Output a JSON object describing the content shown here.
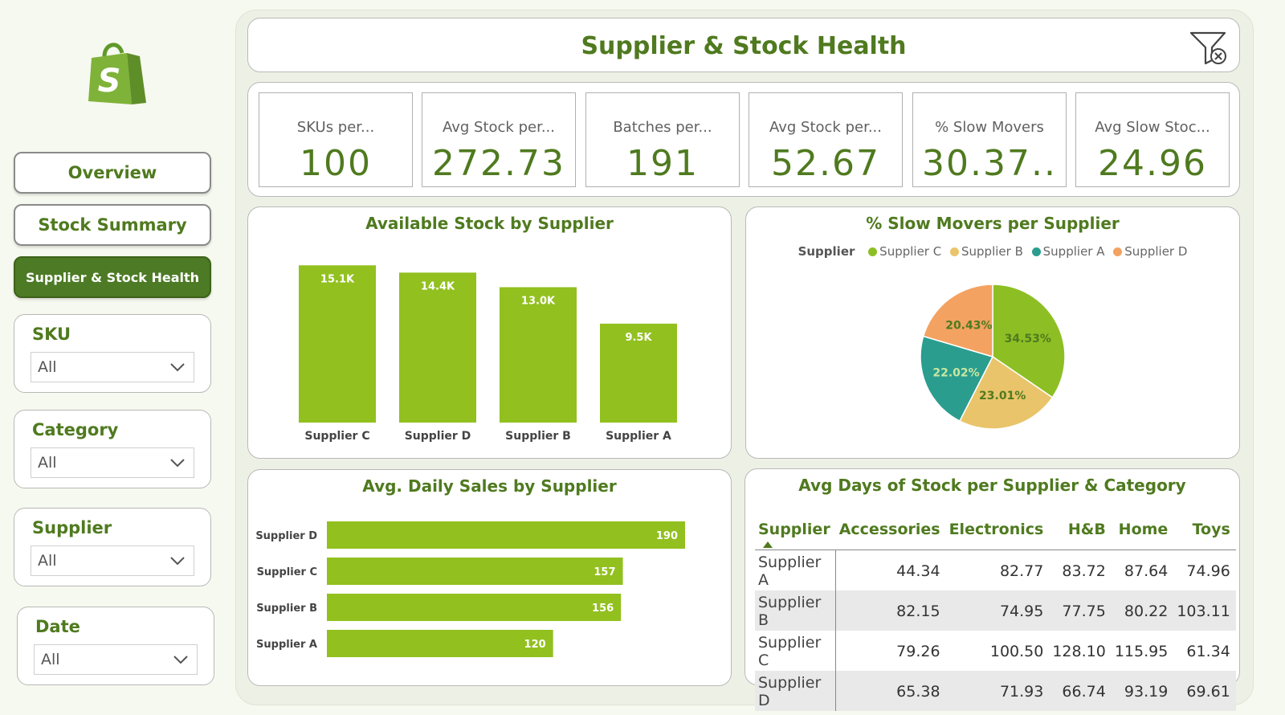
{
  "brand": {
    "logo_icon": "shopify-bag-icon",
    "color": "#6aa42f"
  },
  "nav": [
    {
      "label": "Overview",
      "active": false
    },
    {
      "label": "Stock Summary",
      "active": false
    },
    {
      "label": "Supplier & Stock Health",
      "active": true
    }
  ],
  "slicers": [
    {
      "title": "SKU",
      "value": "All"
    },
    {
      "title": "Category",
      "value": "All"
    },
    {
      "title": "Supplier",
      "value": "All"
    },
    {
      "title": "Date",
      "value": "All"
    }
  ],
  "header": {
    "title": "Supplier & Stock Health",
    "clear_filter_icon": "clear-filter-icon"
  },
  "kpis": [
    {
      "label": "SKUs per...",
      "value": "100"
    },
    {
      "label": "Avg Stock per...",
      "value": "272.73"
    },
    {
      "label": "Batches per...",
      "value": "191"
    },
    {
      "label": "Avg Stock per...",
      "value": "52.67"
    },
    {
      "label": "% Slow Movers",
      "value": "30.37.."
    },
    {
      "label": "Avg Slow Stoc...",
      "value": "24.96"
    }
  ],
  "colors": {
    "accent": "#4f7a1f",
    "bar": "#92c01f",
    "supplier_c": "#8dbf24",
    "supplier_b": "#e9c46a",
    "supplier_a": "#2a9d8f",
    "supplier_d": "#f4a261"
  },
  "chart_data": [
    {
      "type": "bar",
      "title": "Available Stock by Supplier",
      "categories": [
        "Supplier C",
        "Supplier D",
        "Supplier B",
        "Supplier A"
      ],
      "values": [
        15100,
        14400,
        13000,
        9500
      ],
      "labels": [
        "15.1K",
        "14.4K",
        "13.0K",
        "9.5K"
      ],
      "ylim": [
        0,
        16000
      ]
    },
    {
      "type": "pie",
      "title": "% Slow Movers per Supplier",
      "legend_title": "Supplier",
      "legend": "top",
      "slices": [
        {
          "name": "Supplier C",
          "value": 34.53,
          "label": "34.53%"
        },
        {
          "name": "Supplier B",
          "value": 23.01,
          "label": "23.01%"
        },
        {
          "name": "Supplier A",
          "value": 22.02,
          "label": "22.02%"
        },
        {
          "name": "Supplier D",
          "value": 20.43,
          "label": "20.43%"
        }
      ]
    },
    {
      "type": "bar",
      "orientation": "horizontal",
      "title": "Avg. Daily Sales by Supplier",
      "categories": [
        "Supplier D",
        "Supplier C",
        "Supplier B",
        "Supplier A"
      ],
      "values": [
        190,
        157,
        156,
        120
      ],
      "labels": [
        "190",
        "157",
        "156",
        "120"
      ],
      "xlim": [
        0,
        190
      ]
    },
    {
      "type": "table",
      "title": "Avg Days of Stock per Supplier & Category",
      "columns": [
        "Supplier",
        "Accessories",
        "Electronics",
        "H&B",
        "Home",
        "Toys"
      ],
      "rows": [
        [
          "Supplier A",
          "44.34",
          "82.77",
          "83.72",
          "87.64",
          "74.96"
        ],
        [
          "Supplier B",
          "82.15",
          "74.95",
          "77.75",
          "80.22",
          "103.11"
        ],
        [
          "Supplier C",
          "79.26",
          "100.50",
          "128.10",
          "115.95",
          "61.34"
        ],
        [
          "Supplier D",
          "65.38",
          "71.93",
          "66.74",
          "93.19",
          "69.61"
        ]
      ]
    }
  ]
}
